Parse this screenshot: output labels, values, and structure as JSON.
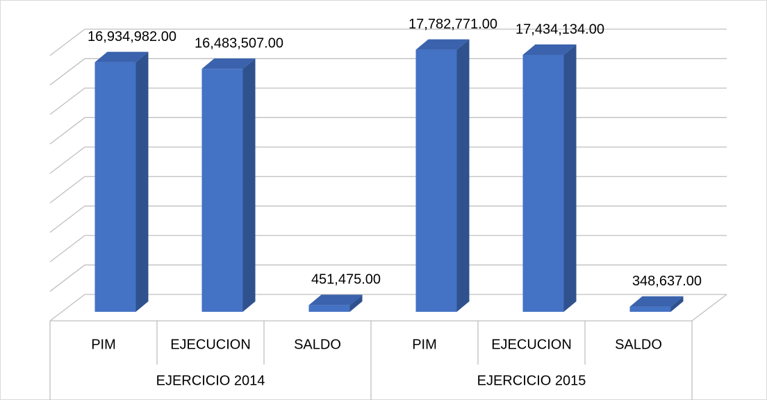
{
  "chart_data": {
    "type": "bar3d",
    "categories": [
      "PIM",
      "EJECUCION",
      "SALDO",
      "PIM",
      "EJECUCION",
      "SALDO"
    ],
    "groups": [
      "EJERCICIO 2014",
      "EJERCICIO 2015"
    ],
    "values": [
      16934982,
      16483507,
      451475,
      17782771,
      17434134,
      348637
    ],
    "value_labels": [
      "16,934,982.00",
      "16,483,507.00",
      "451,475.00",
      "17,782,771.00",
      "17,434,134.00",
      "348,637.00"
    ],
    "color": "#4472c4",
    "ylim": [
      0,
      18000000
    ],
    "yticks": [
      0,
      2000000,
      4000000,
      6000000,
      8000000,
      10000000,
      12000000,
      14000000,
      16000000,
      18000000
    ],
    "grid": true
  }
}
